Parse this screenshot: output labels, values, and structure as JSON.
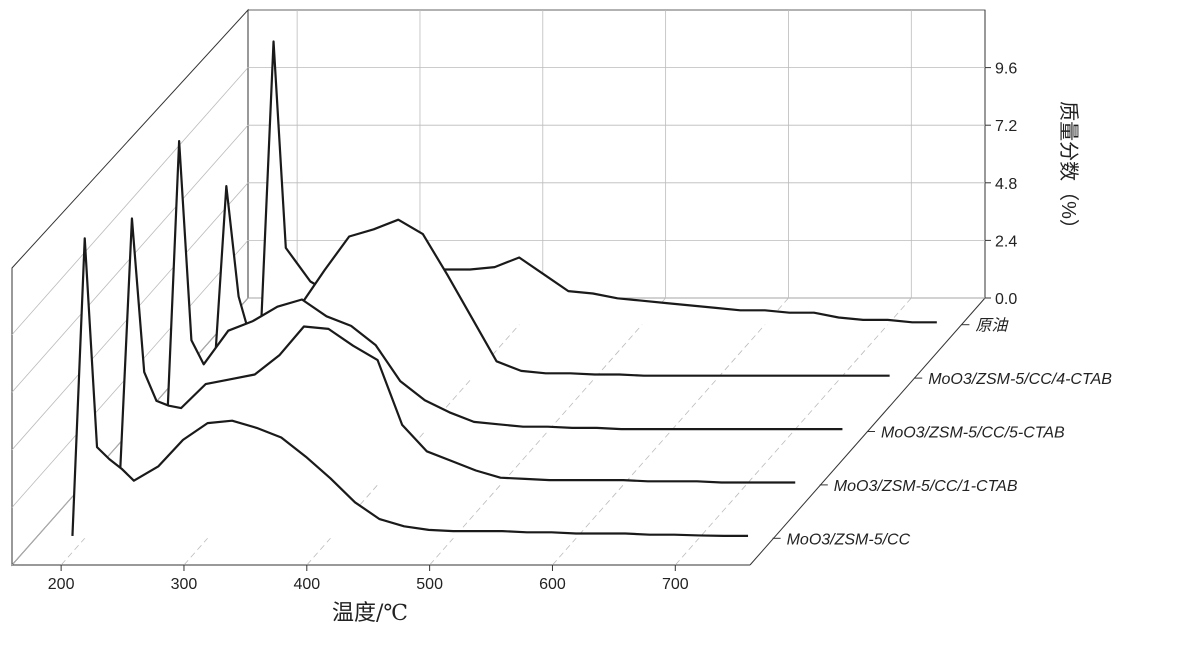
{
  "chart_data": {
    "type": "waterfall",
    "xlabel": "温度/℃",
    "ylabel": "质量分数（%）",
    "x": [
      190,
      200,
      210,
      220,
      230,
      240,
      260,
      280,
      300,
      320,
      340,
      360,
      380,
      400,
      420,
      440,
      460,
      480,
      500,
      520,
      540,
      560,
      580,
      600,
      620,
      640,
      660,
      680,
      700,
      720,
      740
    ],
    "xlim": [
      160,
      760
    ],
    "xticks": [
      200,
      300,
      400,
      500,
      600,
      700
    ],
    "ylim": [
      0,
      12
    ],
    "yticks": [
      {
        "value": 0,
        "label": "0.0"
      },
      2.4,
      4.8,
      7.2,
      9.6
    ],
    "grid": true,
    "series": [
      {
        "name": "原油",
        "color": "#1a1a1a",
        "values": [
          0.1,
          11.8,
          3.2,
          2.5,
          1.8,
          1.5,
          1.3,
          1.6,
          2.0,
          2.3,
          2.3,
          2.3,
          2.4,
          2.8,
          2.1,
          1.4,
          1.3,
          1.1,
          1.0,
          0.9,
          0.8,
          0.7,
          0.6,
          0.6,
          0.5,
          0.5,
          0.3,
          0.2,
          0.2,
          0.1,
          0.1
        ]
      },
      {
        "name": "MoO3/ZSM-5/CC/4-CTAB",
        "color": "#1a1a1a",
        "values": [
          0.1,
          8.0,
          3.4,
          1.6,
          2.4,
          2.5,
          3.0,
          4.5,
          5.9,
          6.2,
          6.6,
          6.0,
          4.3,
          2.5,
          0.7,
          0.3,
          0.2,
          0.2,
          0.15,
          0.15,
          0.1,
          0.1,
          0.1,
          0.1,
          0.1,
          0.1,
          0.1,
          0.1,
          0.1,
          0.1,
          0.1
        ]
      },
      {
        "name": "MoO3/ZSM-5/CC/5-CTAB",
        "color": "#1a1a1a",
        "values": [
          0.1,
          12.1,
          3.8,
          2.8,
          3.5,
          4.2,
          4.6,
          5.2,
          5.5,
          4.8,
          4.4,
          3.6,
          2.1,
          1.3,
          0.8,
          0.4,
          0.3,
          0.2,
          0.2,
          0.15,
          0.15,
          0.1,
          0.1,
          0.1,
          0.1,
          0.1,
          0.1,
          0.1,
          0.1,
          0.1,
          0.1
        ]
      },
      {
        "name": "MoO3/ZSM-5/CC/1-CTAB",
        "color": "#1a1a1a",
        "values": [
          0.1,
          11.1,
          4.7,
          3.5,
          3.3,
          3.2,
          4.2,
          4.4,
          4.6,
          5.4,
          6.6,
          6.5,
          5.8,
          5.2,
          2.5,
          1.4,
          1.0,
          0.6,
          0.3,
          0.25,
          0.2,
          0.2,
          0.2,
          0.2,
          0.15,
          0.15,
          0.15,
          0.1,
          0.1,
          0.1,
          0.1
        ]
      },
      {
        "name": "MoO3/ZSM-5/CC",
        "color": "#1a1a1a",
        "values": [
          0.1,
          12.5,
          3.8,
          3.3,
          2.9,
          2.4,
          3.0,
          4.1,
          4.8,
          4.9,
          4.6,
          4.2,
          3.4,
          2.5,
          1.5,
          0.8,
          0.5,
          0.35,
          0.3,
          0.3,
          0.3,
          0.25,
          0.25,
          0.2,
          0.2,
          0.2,
          0.15,
          0.15,
          0.12,
          0.1,
          0.1
        ]
      }
    ]
  }
}
